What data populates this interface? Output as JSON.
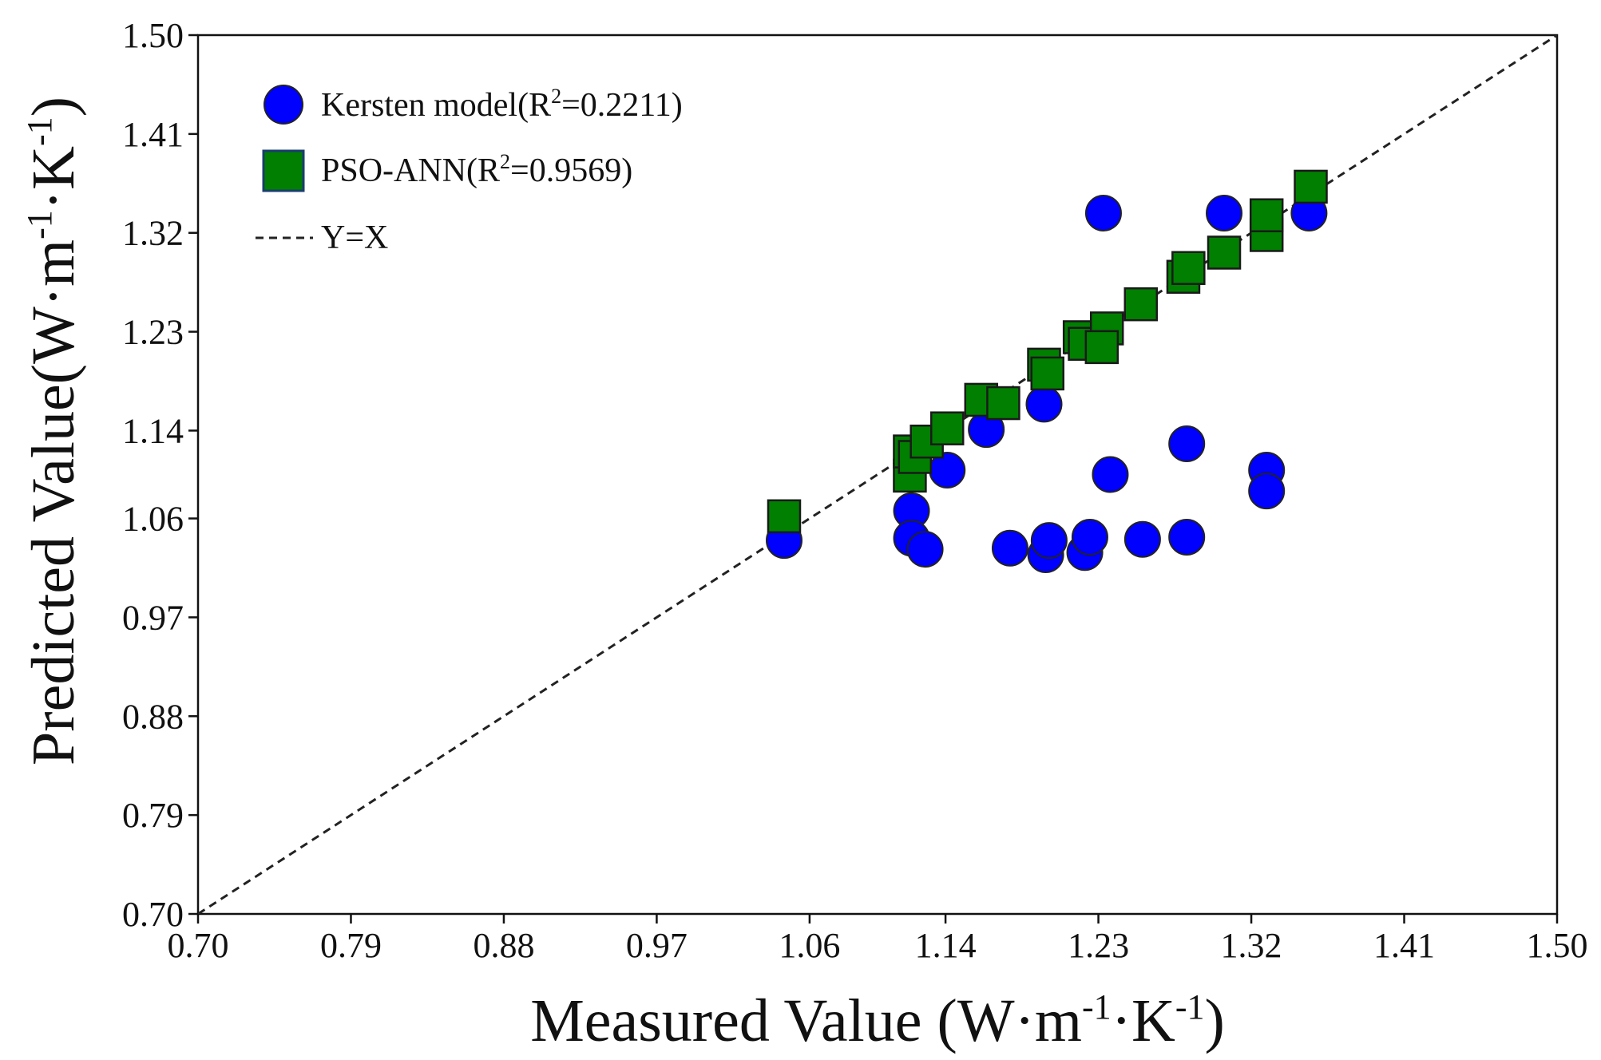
{
  "chart_data": {
    "type": "scatter",
    "title": "",
    "xlabel": {
      "main": "Measured Value (W·m",
      "sup1": "-1",
      "mid": "·K",
      "sup2": "-1",
      "end": ")"
    },
    "ylabel": {
      "main": "Predicted Value(W·m",
      "sup1": "-1",
      "mid": "·K",
      "sup2": "-1",
      "end": ")"
    },
    "xlim": [
      0.7,
      1.5
    ],
    "ylim": [
      0.7,
      1.5
    ],
    "xticks": [
      "0.70",
      "0.79",
      "0.88",
      "0.97",
      "1.06",
      "1.14",
      "1.23",
      "1.32",
      "1.41",
      "1.50"
    ],
    "yticks": [
      "0.70",
      "0.79",
      "0.88",
      "0.97",
      "1.06",
      "1.14",
      "1.23",
      "1.32",
      "1.41",
      "1.50"
    ],
    "grid": false,
    "legend_position": "top-left",
    "reference_line": {
      "name": "Y=X",
      "style": "dashed",
      "color": "#222222"
    },
    "series": [
      {
        "name": "Kersten model",
        "legend_main": "Kersten model(R",
        "legend_sup": "2",
        "legend_end": "=0.2211)",
        "marker": "circle",
        "color": "#0000ff",
        "points": [
          [
            1.045,
            1.04
          ],
          [
            1.12,
            1.067
          ],
          [
            1.12,
            1.042
          ],
          [
            1.128,
            1.032
          ],
          [
            1.141,
            1.104
          ],
          [
            1.164,
            1.141
          ],
          [
            1.178,
            1.033
          ],
          [
            1.198,
            1.164
          ],
          [
            1.199,
            1.027
          ],
          [
            1.201,
            1.04
          ],
          [
            1.222,
            1.029
          ],
          [
            1.225,
            1.043
          ],
          [
            1.233,
            1.338
          ],
          [
            1.237,
            1.1
          ],
          [
            1.256,
            1.041
          ],
          [
            1.282,
            1.128
          ],
          [
            1.282,
            1.043
          ],
          [
            1.304,
            1.338
          ],
          [
            1.329,
            1.104
          ],
          [
            1.329,
            1.085
          ],
          [
            1.354,
            1.338
          ]
        ]
      },
      {
        "name": "PSO-ANN",
        "legend_main": "PSO-ANN(R",
        "legend_sup": "2",
        "legend_end": "=0.9569)",
        "marker": "square",
        "color": "#007f00",
        "points": [
          [
            1.045,
            1.062
          ],
          [
            1.119,
            1.099
          ],
          [
            1.119,
            1.121
          ],
          [
            1.122,
            1.116
          ],
          [
            1.129,
            1.13
          ],
          [
            1.141,
            1.142
          ],
          [
            1.161,
            1.168
          ],
          [
            1.174,
            1.165
          ],
          [
            1.198,
            1.2
          ],
          [
            1.2,
            1.192
          ],
          [
            1.219,
            1.225
          ],
          [
            1.222,
            1.219
          ],
          [
            1.235,
            1.233
          ],
          [
            1.232,
            1.216
          ],
          [
            1.255,
            1.255
          ],
          [
            1.28,
            1.28
          ],
          [
            1.283,
            1.288
          ],
          [
            1.304,
            1.302
          ],
          [
            1.329,
            1.318
          ],
          [
            1.329,
            1.336
          ],
          [
            1.355,
            1.362
          ]
        ]
      }
    ]
  }
}
